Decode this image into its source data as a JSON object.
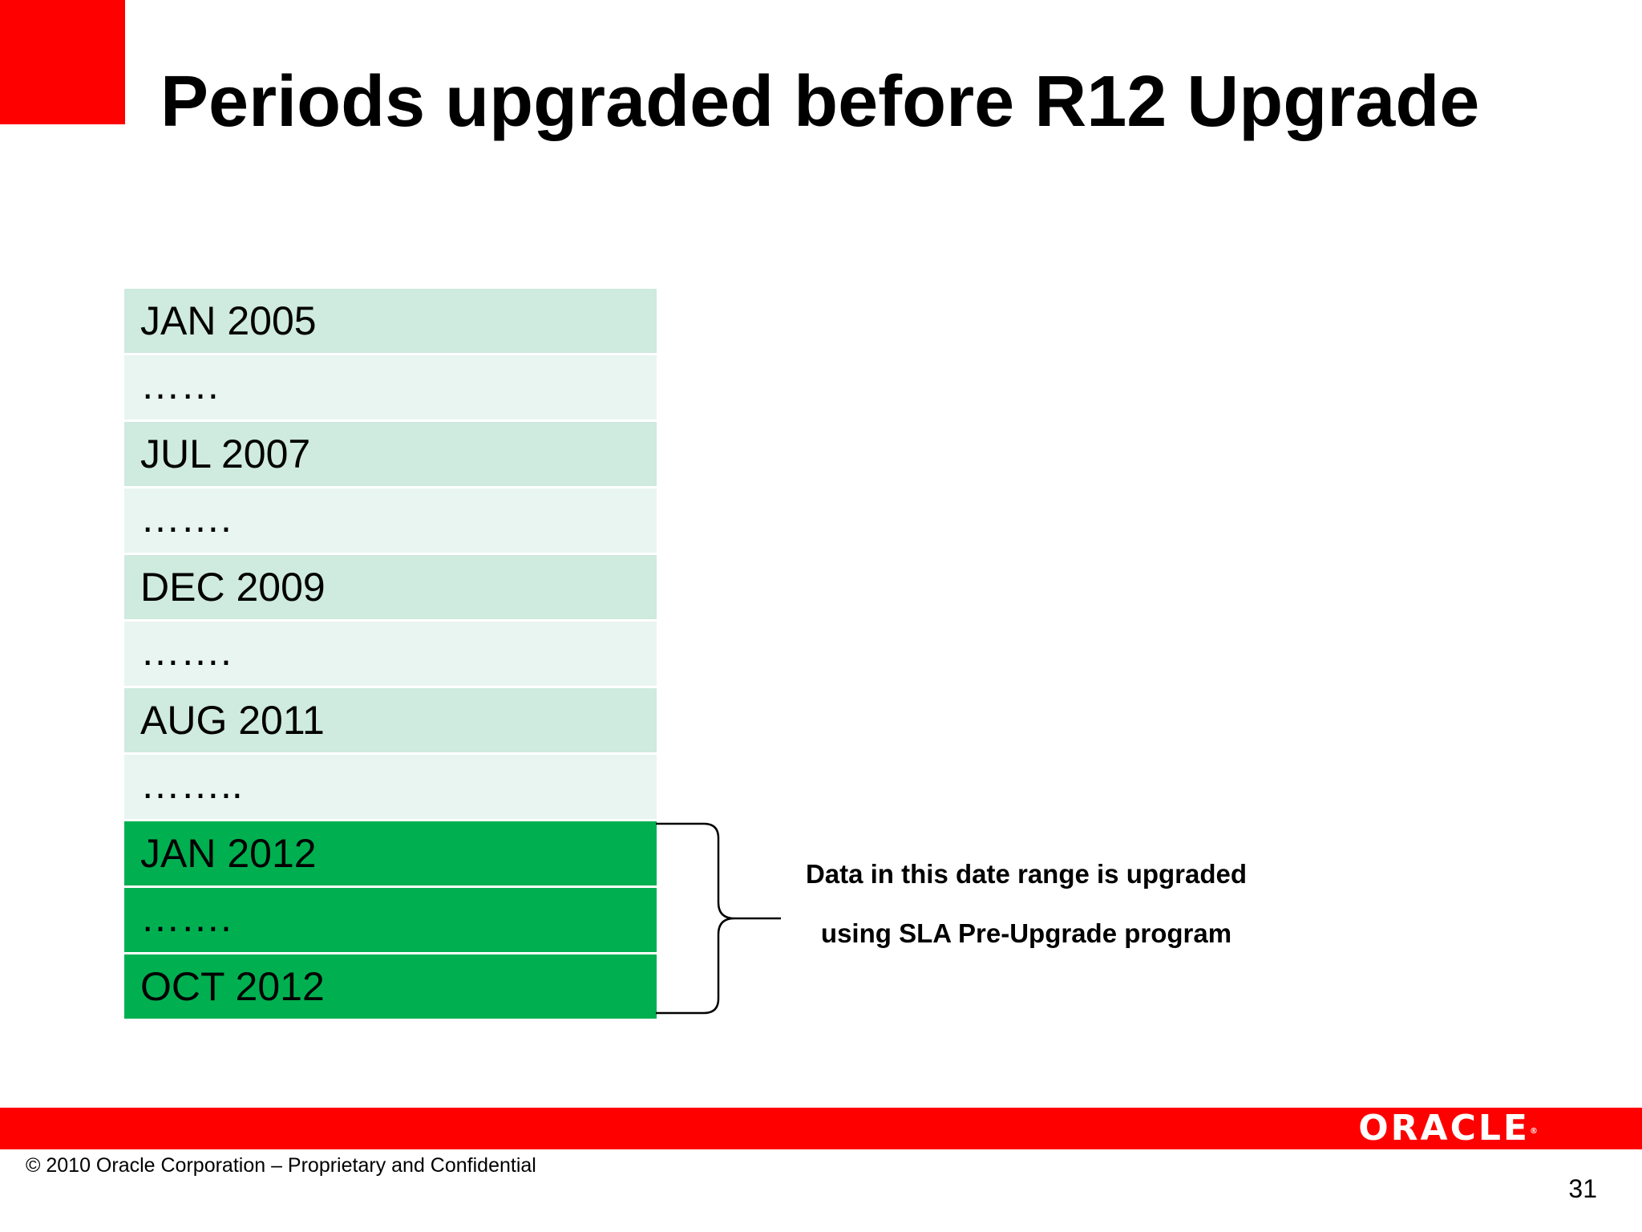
{
  "slide": {
    "title": "Periods upgraded before R12 Upgrade",
    "page_number": "31"
  },
  "periods": {
    "rows": [
      {
        "label": "JAN 2005",
        "highlight": false
      },
      {
        "label": "……",
        "highlight": false
      },
      {
        "label": "JUL 2007",
        "highlight": false
      },
      {
        "label": "…….",
        "highlight": false
      },
      {
        "label": "DEC 2009",
        "highlight": false
      },
      {
        "label": "…….",
        "highlight": false
      },
      {
        "label": "AUG 2011",
        "highlight": false
      },
      {
        "label": "……..",
        "highlight": false
      },
      {
        "label": "JAN 2012",
        "highlight": true
      },
      {
        "label": "…….",
        "highlight": true
      },
      {
        "label": "OCT 2012",
        "highlight": true
      }
    ]
  },
  "annotation": {
    "line1": "Data in this date range is upgraded",
    "line2": "using SLA Pre-Upgrade program"
  },
  "footer": {
    "copyright": "© 2010 Oracle Corporation – Proprietary and Confidential",
    "logo_text": "ORACLE",
    "logo_mark": "®"
  },
  "colors": {
    "accent_red": "#ff0000",
    "highlight_green": "#00b050",
    "shade_a": "#cfeadf",
    "shade_b": "#e8f5f0"
  }
}
